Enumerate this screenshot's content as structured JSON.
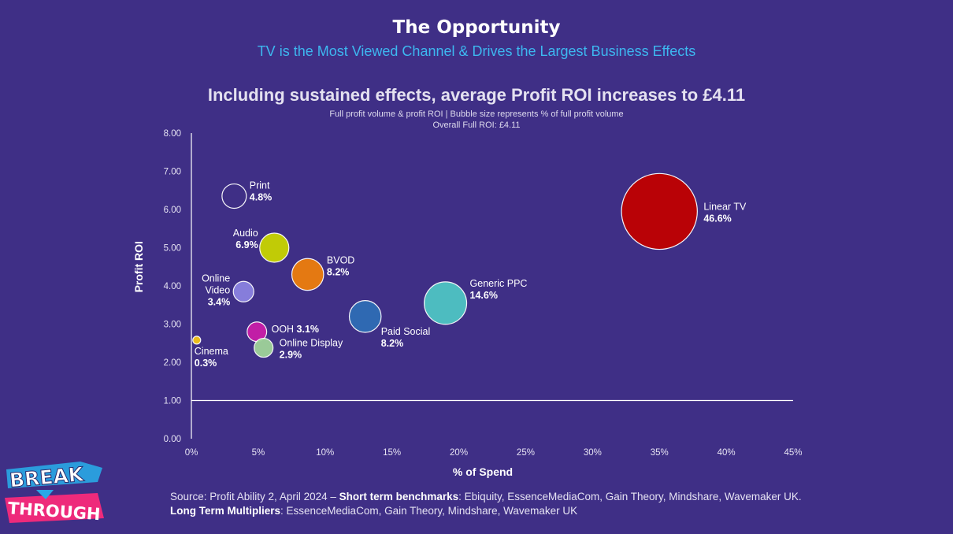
{
  "slide": {
    "title": "The Opportunity",
    "subtitle": "TV is the Most Viewed Channel & Drives the Largest Business Effects"
  },
  "logo": {
    "line1": "BREAK",
    "line2": "THROUGH"
  },
  "source": {
    "line1_prefix": "Source: Profit Ability 2, April 2024 – ",
    "line1_bold": "Short term benchmarks",
    "line1_rest": ": Ebiquity, EssenceMediaCom, Gain Theory, Mindshare, Wavemaker UK.",
    "line2_bold": "Long Term Multipliers",
    "line2_rest": ": EssenceMediaCom, Gain Theory, Mindshare, Wavemaker UK"
  },
  "chart_data": {
    "type": "scatter",
    "title": "Including sustained effects, average Profit ROI increases to £4.11",
    "subtitle": "Full profit volume & profit ROI | Bubble size represents % of full profit volume",
    "subtitle2": "Overall Full ROI: £4.11",
    "xlabel": "% of Spend",
    "ylabel": "Profit ROI",
    "xlim": [
      0,
      45
    ],
    "ylim": [
      0,
      8
    ],
    "x_ticks": [
      0,
      5,
      10,
      15,
      20,
      25,
      30,
      35,
      40,
      45
    ],
    "x_tick_labels": [
      "0%",
      "5%",
      "10%",
      "15%",
      "20%",
      "25%",
      "30%",
      "35%",
      "40%",
      "45%"
    ],
    "y_ticks": [
      0,
      1,
      2,
      3,
      4,
      5,
      6,
      7,
      8
    ],
    "y_tick_labels": [
      "0.00",
      "1.00",
      "2.00",
      "3.00",
      "4.00",
      "5.00",
      "6.00",
      "7.00",
      "8.00"
    ],
    "reference_line": {
      "y": 1.0
    },
    "grid": false,
    "points": [
      {
        "name": "Linear TV",
        "value_label": "46.6%",
        "x": 35.0,
        "y": 5.95,
        "size": 46.6,
        "color": "#c00000",
        "label_pos": "right"
      },
      {
        "name": "Generic PPC",
        "value_label": "14.6%",
        "x": 19.0,
        "y": 3.55,
        "size": 14.6,
        "color": "#4ec4c4",
        "label_pos": "right-top"
      },
      {
        "name": "Paid Social",
        "value_label": "8.2%",
        "x": 13.0,
        "y": 3.2,
        "size": 8.2,
        "color": "#2f6db5",
        "label_pos": "below-right"
      },
      {
        "name": "BVOD",
        "value_label": "8.2%",
        "x": 8.7,
        "y": 4.3,
        "size": 8.2,
        "color": "#ed7d0c",
        "label_pos": "right-top"
      },
      {
        "name": "Audio",
        "value_label": "6.9%",
        "x": 6.2,
        "y": 5.0,
        "size": 6.9,
        "color": "#c9d400",
        "label_pos": "left-top"
      },
      {
        "name": "Print",
        "value_label": "4.8%",
        "x": 3.2,
        "y": 6.35,
        "size": 4.8,
        "color": "#3f2f86",
        "label_pos": "right-top"
      },
      {
        "name": "Online Video",
        "value_label": "3.4%",
        "x": 3.9,
        "y": 3.85,
        "size": 3.4,
        "color": "#8a82e0",
        "label_pos": "left"
      },
      {
        "name": "OOH",
        "value_label": "3.1%",
        "x": 4.9,
        "y": 2.8,
        "size": 3.1,
        "color": "#c81ea8",
        "label_pos": "right-inline"
      },
      {
        "name": "Online Display",
        "value_label": "2.9%",
        "x": 5.4,
        "y": 2.38,
        "size": 2.9,
        "color": "#9fd39a",
        "label_pos": "right"
      },
      {
        "name": "Cinema",
        "value_label": "0.3%",
        "x": 0.4,
        "y": 2.58,
        "size": 0.3,
        "color": "#f5c518",
        "label_pos": "below"
      }
    ]
  }
}
